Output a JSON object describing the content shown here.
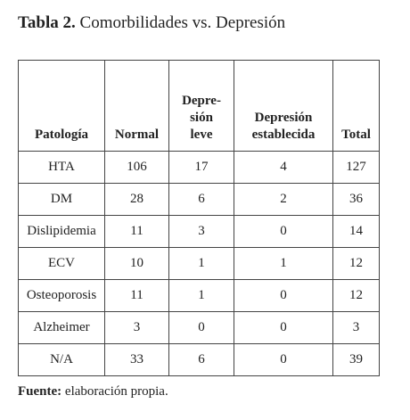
{
  "title": {
    "label": "Tabla 2.",
    "text": "Comorbilidades vs. Depresión"
  },
  "table": {
    "header": [
      [
        "Patología"
      ],
      [
        "Normal"
      ],
      [
        "Depre-",
        "sión",
        "leve"
      ],
      [
        "Depresión",
        "establecida"
      ],
      [
        "Total"
      ]
    ],
    "rows": [
      [
        "HTA",
        106,
        17,
        4,
        127
      ],
      [
        "DM",
        28,
        6,
        2,
        36
      ],
      [
        "Dislipidemia",
        11,
        3,
        0,
        14
      ],
      [
        "ECV",
        10,
        1,
        1,
        12
      ],
      [
        "Osteoporosis",
        11,
        1,
        0,
        12
      ],
      [
        "Alzheimer",
        3,
        0,
        0,
        3
      ],
      [
        "N/A",
        33,
        6,
        0,
        39
      ]
    ]
  },
  "footer": {
    "label": "Fuente:",
    "text": "elaboración propia."
  }
}
